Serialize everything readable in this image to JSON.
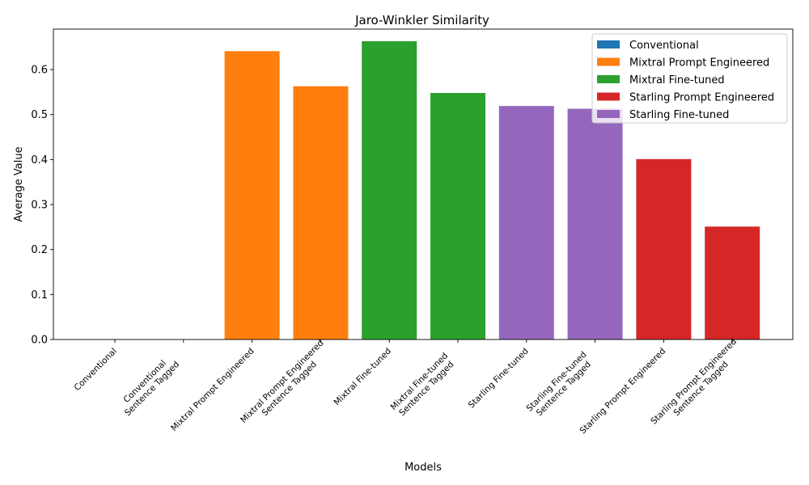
{
  "chart_data": {
    "type": "bar",
    "title": "Jaro-Winkler Similarity",
    "xlabel": "Models",
    "ylabel": "Average Value",
    "ylim": [
      0,
      0.69
    ],
    "yticks": [
      0.0,
      0.1,
      0.2,
      0.3,
      0.4,
      0.5,
      0.6
    ],
    "ytick_labels": [
      "0.0",
      "0.1",
      "0.2",
      "0.3",
      "0.4",
      "0.5",
      "0.6"
    ],
    "grid": false,
    "legend_position": "top-right",
    "categories": [
      "Conventional",
      "Conventional\nSentence Tagged",
      "Mixtral Prompt Engineered",
      "Mixtral Prompt Engineered\nSentence Tagged",
      "Mixtral Fine-tuned",
      "Mixtral Fine-tuned\nSentence Tagged",
      "Starling Fine-tuned",
      "Starling Fine-tuned\nSentence Tagged",
      "Starling Prompt Engineered",
      "Starling Prompt Engineered\nSentence Tagged"
    ],
    "values": [
      0.0,
      0.0,
      0.641,
      0.563,
      0.663,
      0.548,
      0.519,
      0.513,
      0.401,
      0.251
    ],
    "bar_groups": [
      0,
      0,
      1,
      1,
      2,
      2,
      4,
      4,
      3,
      3
    ],
    "series": [
      {
        "name": "Conventional",
        "color": "#1f77b4"
      },
      {
        "name": "Mixtral Prompt Engineered",
        "color": "#ff7f0e"
      },
      {
        "name": "Mixtral Fine-tuned",
        "color": "#2ca02c"
      },
      {
        "name": "Starling Prompt Engineered",
        "color": "#d62728"
      },
      {
        "name": "Starling Fine-tuned",
        "color": "#9467bd"
      }
    ]
  }
}
